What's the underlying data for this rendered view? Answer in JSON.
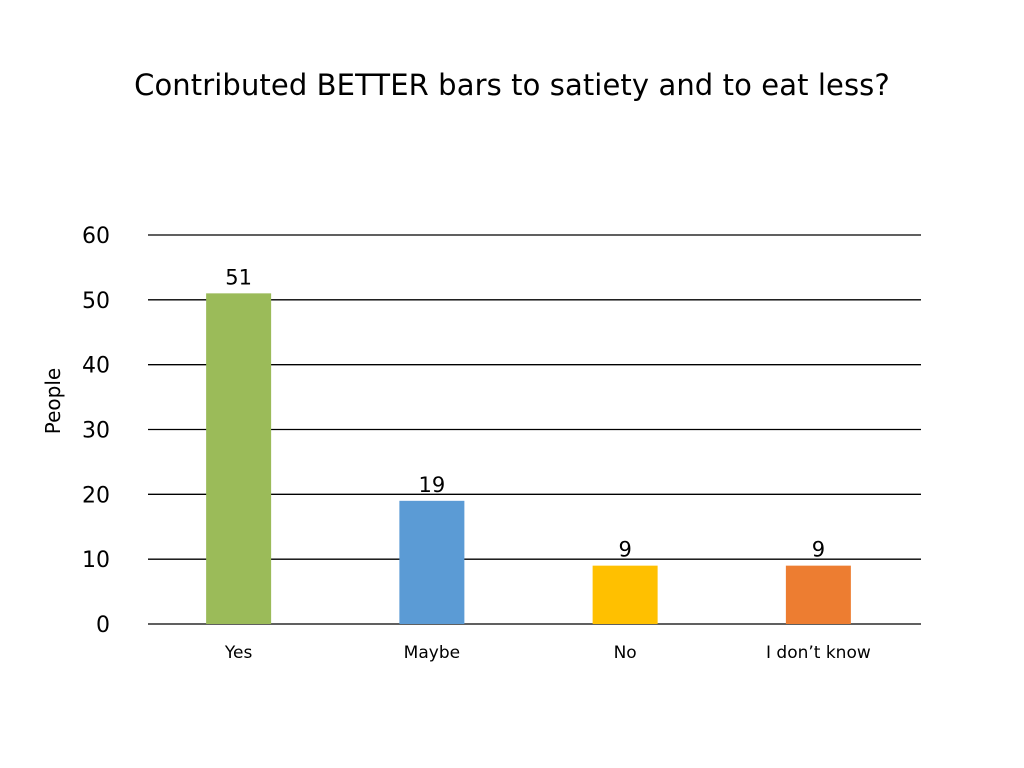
{
  "chart_data": {
    "type": "bar",
    "title": "Contributed BETTER bars to satiety and to eat less?",
    "xlabel": "",
    "ylabel": "People",
    "ylim": [
      0,
      60
    ],
    "yticks": [
      0,
      10,
      20,
      30,
      40,
      50,
      60
    ],
    "grid": true,
    "categories": [
      "Yes",
      "Maybe",
      "No",
      "I don’t know"
    ],
    "values": [
      51,
      19,
      9,
      9
    ],
    "data_labels": [
      "51",
      "19",
      "9",
      "9"
    ],
    "colors": [
      "#9BBB59",
      "#5B9BD5",
      "#FFC000",
      "#ED7D31"
    ],
    "gridline_color": "#000000"
  }
}
